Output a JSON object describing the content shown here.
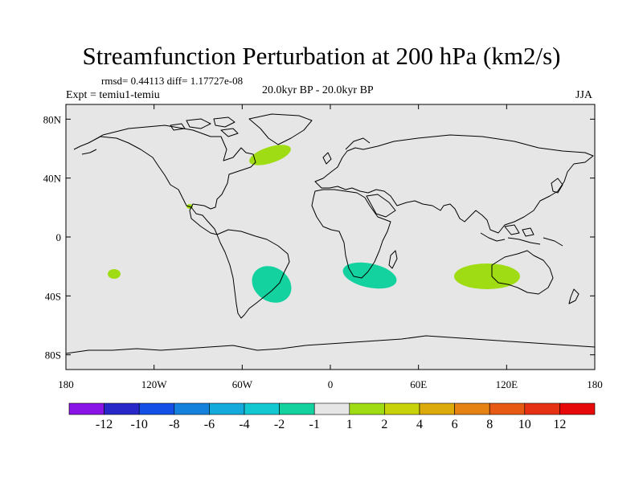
{
  "title": "Streamfunction Perturbation at 200 hPa (km2/s)",
  "stats": "rmsd= 0.44113 diff= 1.17727e-08",
  "experiment": "Expt = temiu1-temiu",
  "period": "20.0kyr BP - 20.0kyr BP",
  "season": "JJA",
  "colors": {
    "ocean": "#e6e6e6",
    "positive_anomaly": "#a0dc14",
    "negative_anomaly": "#14d2a0",
    "coastline": "#000000"
  },
  "chart_data": {
    "type": "heatmap",
    "projection": "cylindrical-equidistant",
    "lon_range": [
      -180,
      180
    ],
    "lat_range": [
      -90,
      90
    ],
    "x_ticks": [
      {
        "value": -180,
        "label": "180"
      },
      {
        "value": -120,
        "label": "120W"
      },
      {
        "value": -60,
        "label": "60W"
      },
      {
        "value": 0,
        "label": "0"
      },
      {
        "value": 60,
        "label": "60E"
      },
      {
        "value": 120,
        "label": "120E"
      },
      {
        "value": 180,
        "label": "180"
      }
    ],
    "y_ticks": [
      {
        "value": 80,
        "label": "80N"
      },
      {
        "value": 40,
        "label": "40N"
      },
      {
        "value": 0,
        "label": "0"
      },
      {
        "value": -40,
        "label": "40S"
      },
      {
        "value": -80,
        "label": "80S"
      }
    ],
    "anomalies": [
      {
        "name": "north-atlantic",
        "sign": "positive",
        "level": 1,
        "lon": -35,
        "lat": 57
      },
      {
        "name": "central-america",
        "sign": "positive",
        "level": 1,
        "lon": -96,
        "lat": 21
      },
      {
        "name": "south-pacific",
        "sign": "positive",
        "level": 1,
        "lon": -147,
        "lat": -24
      },
      {
        "name": "south-america",
        "sign": "negative",
        "level": -1,
        "lon": -40,
        "lat": -32
      },
      {
        "name": "southern-africa",
        "sign": "negative",
        "level": -1,
        "lon": 24,
        "lat": -23
      },
      {
        "name": "indian-ocean-australia",
        "sign": "positive",
        "level": 1,
        "lon": 115,
        "lat": -25
      }
    ],
    "colorbar": {
      "labels": [
        "-12",
        "-10",
        "-8",
        "-6",
        "-4",
        "-2",
        "-1",
        "1",
        "2",
        "4",
        "6",
        "8",
        "10",
        "12"
      ],
      "colors": [
        "#8a14e6",
        "#2828c8",
        "#1450e6",
        "#1482dc",
        "#14aadc",
        "#14c8d2",
        "#14d2a0",
        "#e6e6e6",
        "#a0dc14",
        "#c8d20a",
        "#dcaa0a",
        "#e68214",
        "#e65a14",
        "#e63214",
        "#e60a0a"
      ]
    }
  }
}
